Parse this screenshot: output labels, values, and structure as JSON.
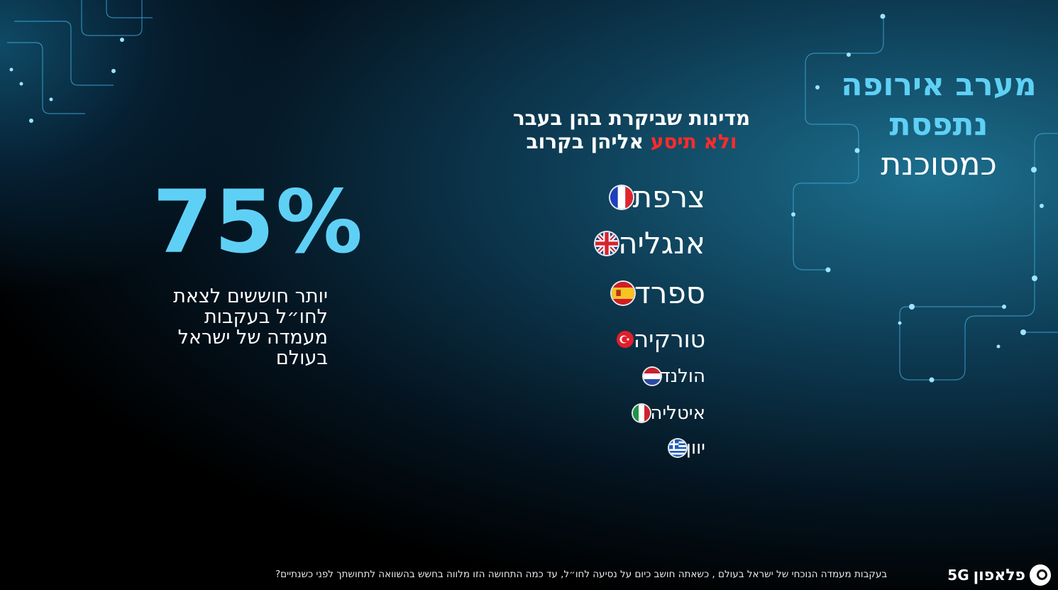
{
  "title": {
    "line1": "מערב אירופה",
    "line2": "נתפסת",
    "line3": "כמסוכנת"
  },
  "countries_heading": {
    "line1": "מדינות שביקרת בהן בעבר",
    "line2_highlight": "ולא תיסע",
    "line2_rest": "אליהן בקרוב"
  },
  "countries": [
    {
      "name": "צרפת",
      "flag_icon": "france-flag-icon"
    },
    {
      "name": "אנגליה",
      "flag_icon": "uk-flag-icon"
    },
    {
      "name": "ספרד",
      "flag_icon": "spain-flag-icon"
    },
    {
      "name": "טורקיה",
      "flag_icon": "turkey-flag-icon"
    },
    {
      "name": "הולנד",
      "flag_icon": "netherlands-flag-icon"
    },
    {
      "name": "איטליה",
      "flag_icon": "italy-flag-icon"
    },
    {
      "name": "יוון",
      "flag_icon": "greece-flag-icon"
    }
  ],
  "stat": {
    "value": "75%",
    "description": "יותר חוששים לצאת לחו״ל בעקבות מעמדה של ישראל בעולם"
  },
  "footer": {
    "question": "בעקבות מעמדה הנוכחי של ישראל בעולם , כשאתה חושב כיום על נסיעה לחו״ל, עד כמה התחושה הזו מלווה בחשש בהשוואה לתחושתך לפני כשנתיים?",
    "logo_word": "פלאפון",
    "logo_5g": "5G"
  },
  "colors": {
    "accent": "#5fd0f5",
    "highlight": "#ff2b2b",
    "background": "#000000"
  }
}
